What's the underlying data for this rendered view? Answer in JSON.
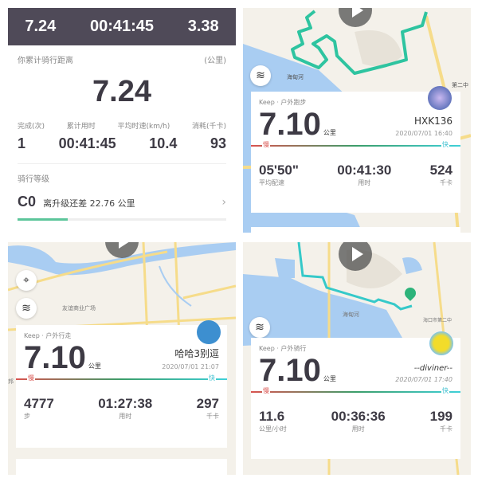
{
  "summary": {
    "top_distance": "7.24",
    "top_time": "00:41:45",
    "top_pace": "3.38",
    "title": "你累计骑行距离",
    "unit": "(公里)",
    "total": "7.24",
    "stats": [
      {
        "label": "完成(次)",
        "value": "1"
      },
      {
        "label": "累计用时",
        "value": "00:41:45"
      },
      {
        "label": "平均时速(km/h)",
        "value": "10.4"
      },
      {
        "label": "消耗(千卡)",
        "value": "93"
      }
    ],
    "level_title": "骑行等级",
    "level": "C0",
    "level_text": "离升级还差 22.76 公里",
    "level_progress": 0.24,
    "accent": "#5cc59a"
  },
  "cards": [
    {
      "type": "Keep · 户外跑步",
      "distance": "7.10",
      "unit": "公里",
      "user": "HXK136",
      "date": "2020/07/01 16:40",
      "slow": "慢",
      "fast": "快",
      "stats": [
        {
          "value": "05'50\"",
          "label": "平均配速"
        },
        {
          "value": "00:41:30",
          "label": "用时"
        },
        {
          "value": "524",
          "label": "千卡"
        }
      ],
      "map_labels": [
        "海甸河",
        "第二中"
      ]
    },
    {
      "type": "Keep · 户外行走",
      "distance": "7.10",
      "unit": "公里",
      "user": "哈哈3别逗",
      "date": "2020/07/01 21:07",
      "slow": "慢",
      "fast": "快",
      "stats": [
        {
          "value": "4777",
          "label": "步"
        },
        {
          "value": "01:27:38",
          "label": "用时"
        },
        {
          "value": "297",
          "label": "千卡"
        }
      ],
      "map_labels": [
        "友谊商业广场",
        "邦"
      ]
    },
    {
      "type": "Keep · 户外骑行",
      "distance": "7.10",
      "unit": "公里",
      "user": "--diviner--",
      "date": "2020/07/01 17:40",
      "slow": "慢",
      "fast": "快",
      "stats": [
        {
          "value": "11.6",
          "label": "公里/小时"
        },
        {
          "value": "00:36:36",
          "label": "用时"
        },
        {
          "value": "199",
          "label": "千卡"
        }
      ],
      "map_labels": [
        "海甸河",
        "海口市第二中"
      ]
    }
  ],
  "colors": {
    "route": "#2ec4a0",
    "route2": "#35c9c9",
    "water": "#a9cdf2",
    "road": "#f6dc8a",
    "dark": "#4f4a58"
  }
}
